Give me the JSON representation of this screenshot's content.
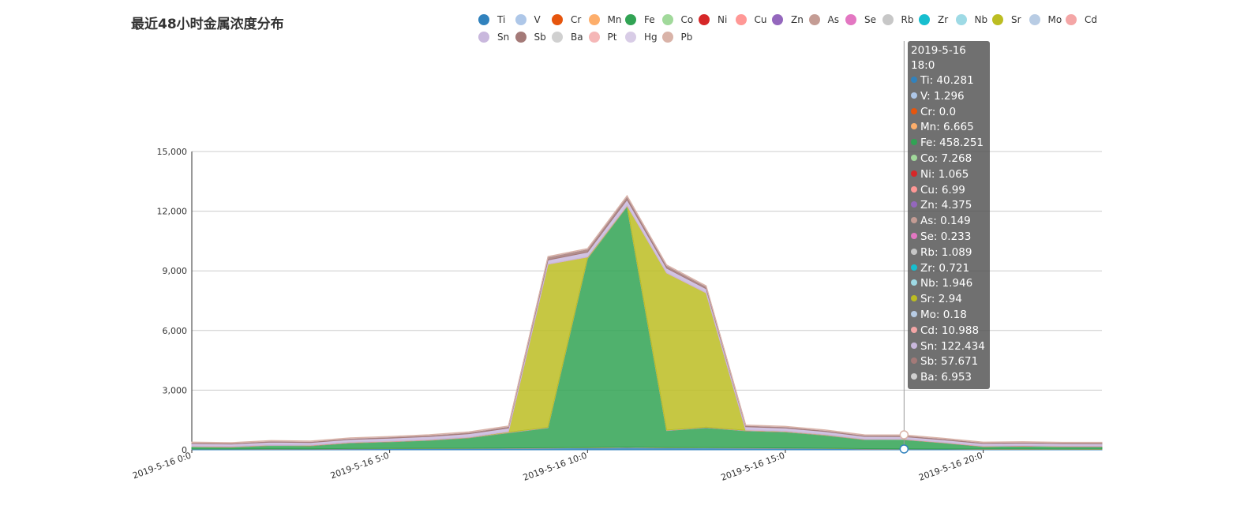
{
  "chart_data": {
    "type": "area",
    "title": "最近48小时金属浓度分布",
    "x": [
      "2019-5-16 0:0",
      "2019-5-16 1:0",
      "2019-5-16 2:0",
      "2019-5-16 3:0",
      "2019-5-16 4:0",
      "2019-5-16 5:0",
      "2019-5-16 6:0",
      "2019-5-16 7:0",
      "2019-5-16 8:0",
      "2019-5-16 9:0",
      "2019-5-16 10:0",
      "2019-5-16 11:0",
      "2019-5-16 12:0",
      "2019-5-16 13:0",
      "2019-5-16 14:0",
      "2019-5-16 15:0",
      "2019-5-16 16:0",
      "2019-5-16 17:0",
      "2019-5-16 18:0",
      "2019-5-16 19:0",
      "2019-5-16 20:0",
      "2019-5-16 21:0",
      "2019-5-16 22:0",
      "2019-5-16 23:0"
    ],
    "x_tick_labels": [
      "2019-5-16 0:0",
      "2019-5-16 5:0",
      "2019-5-16 10:0",
      "2019-5-16 15:0",
      "2019-5-16 20:0"
    ],
    "y_ticks": [
      "0",
      "3,000",
      "6,000",
      "9,000",
      "12,000",
      "15,000"
    ],
    "ylim": [
      0,
      15000
    ],
    "stacked": true,
    "grid": true,
    "legend_position": "top",
    "series": [
      {
        "name": "Ti",
        "color": "#3182bd",
        "values": [
          40,
          38,
          45,
          42,
          55,
          60,
          65,
          70,
          80,
          90,
          100,
          120,
          100,
          95,
          90,
          85,
          70,
          50,
          40.281,
          38,
          35,
          35,
          32,
          30
        ]
      },
      {
        "name": "V",
        "color": "#aec7e8",
        "values": [
          2,
          2,
          2,
          2,
          2,
          2,
          2,
          2,
          2,
          2,
          2,
          2,
          2,
          2,
          2,
          2,
          2,
          1.5,
          1.296,
          1.3,
          1.3,
          1.3,
          1.3,
          1.3
        ]
      },
      {
        "name": "Cr",
        "color": "#e6550d",
        "values": [
          0,
          0,
          0,
          0,
          0,
          0,
          0,
          0,
          0,
          0,
          0,
          0,
          0,
          0,
          0,
          0,
          0,
          0,
          0.0,
          0,
          0,
          0,
          0,
          0
        ]
      },
      {
        "name": "Mn",
        "color": "#fdae6b",
        "values": [
          5,
          5,
          6,
          6,
          7,
          8,
          8,
          9,
          10,
          12,
          14,
          15,
          12,
          12,
          10,
          9,
          8,
          7,
          6.665,
          6,
          6,
          6,
          6,
          6
        ]
      },
      {
        "name": "Fe",
        "color": "#31a354",
        "values": [
          100,
          90,
          160,
          150,
          280,
          330,
          400,
          520,
          760,
          1000,
          9500,
          12100,
          850,
          1000,
          850,
          800,
          650,
          450,
          458.251,
          300,
          120,
          140,
          120,
          120
        ]
      },
      {
        "name": "Co",
        "color": "#a1d99b",
        "values": [
          10,
          10,
          10,
          10,
          10,
          10,
          10,
          10,
          10,
          10,
          10,
          10,
          10,
          10,
          10,
          10,
          10,
          8,
          7.268,
          7,
          7,
          7,
          7,
          7
        ]
      },
      {
        "name": "Ni",
        "color": "#d62728",
        "values": [
          1,
          1,
          1,
          1,
          1,
          1,
          1,
          1,
          1,
          1,
          1,
          1,
          1,
          1,
          1,
          1,
          1,
          1,
          1.065,
          1,
          1,
          1,
          1,
          1
        ]
      },
      {
        "name": "Cu",
        "color": "#ff9896",
        "values": [
          8,
          8,
          8,
          8,
          8,
          8,
          8,
          8,
          8,
          8,
          8,
          8,
          8,
          8,
          8,
          8,
          8,
          7,
          6.99,
          7,
          7,
          7,
          7,
          7
        ]
      },
      {
        "name": "Zn",
        "color": "#9467bd",
        "values": [
          5,
          5,
          5,
          5,
          5,
          5,
          5,
          5,
          5,
          5,
          5,
          5,
          5,
          5,
          5,
          5,
          5,
          5,
          4.375,
          4,
          4,
          4,
          4,
          4
        ]
      },
      {
        "name": "As",
        "color": "#c49c94",
        "values": [
          0.2,
          0.2,
          0.2,
          0.2,
          0.2,
          0.2,
          0.2,
          0.2,
          0.2,
          0.2,
          0.2,
          0.2,
          0.2,
          0.2,
          0.2,
          0.2,
          0.2,
          0.2,
          0.149,
          0.2,
          0.2,
          0.2,
          0.2,
          0.2
        ]
      },
      {
        "name": "Se",
        "color": "#e377c2",
        "values": [
          0.3,
          0.3,
          0.3,
          0.3,
          0.3,
          0.3,
          0.3,
          0.3,
          0.3,
          0.3,
          0.3,
          0.3,
          0.3,
          0.3,
          0.3,
          0.3,
          0.3,
          0.3,
          0.233,
          0.3,
          0.3,
          0.3,
          0.3,
          0.3
        ]
      },
      {
        "name": "Rb",
        "color": "#c7c7c7",
        "values": [
          1,
          1,
          1,
          1,
          1,
          1,
          1,
          1,
          1,
          1,
          1,
          1,
          1,
          1,
          1,
          1,
          1,
          1,
          1.089,
          1,
          1,
          1,
          1,
          1
        ]
      },
      {
        "name": "Zr",
        "color": "#17becf",
        "values": [
          1,
          1,
          1,
          1,
          1,
          1,
          1,
          1,
          1,
          1,
          1,
          1,
          1,
          1,
          1,
          1,
          1,
          1,
          0.721,
          1,
          1,
          1,
          1,
          1
        ]
      },
      {
        "name": "Nb",
        "color": "#9edae5",
        "values": [
          2,
          2,
          2,
          2,
          2,
          2,
          2,
          2,
          2,
          2,
          2,
          2,
          2,
          2,
          2,
          2,
          2,
          2,
          1.946,
          2,
          2,
          2,
          2,
          2
        ]
      },
      {
        "name": "Sr",
        "color": "#bcbd22",
        "values": [
          5,
          5,
          5,
          5,
          5,
          5,
          5,
          5,
          30,
          8200,
          50,
          20,
          7900,
          6750,
          10,
          10,
          10,
          5,
          2.94,
          3,
          3,
          3,
          3,
          3
        ]
      },
      {
        "name": "Mo",
        "color": "#b8cce4",
        "values": [
          0.2,
          0.2,
          0.2,
          0.2,
          0.2,
          0.2,
          0.2,
          0.2,
          0.2,
          0.2,
          0.2,
          0.2,
          0.2,
          0.2,
          0.2,
          0.2,
          0.2,
          0.2,
          0.18,
          0.2,
          0.2,
          0.2,
          0.2,
          0.2
        ]
      },
      {
        "name": "Cd",
        "color": "#f4a6a6",
        "values": [
          12,
          12,
          12,
          12,
          12,
          12,
          12,
          12,
          12,
          12,
          12,
          12,
          12,
          12,
          12,
          12,
          12,
          11,
          10.988,
          11,
          11,
          11,
          11,
          11
        ]
      },
      {
        "name": "Sn",
        "color": "#c9b8dd",
        "values": [
          120,
          110,
          130,
          120,
          130,
          140,
          150,
          160,
          170,
          200,
          230,
          280,
          230,
          200,
          160,
          150,
          140,
          125,
          122.434,
          120,
          115,
          115,
          110,
          110
        ]
      },
      {
        "name": "Sb",
        "color": "#a47a78",
        "values": [
          50,
          45,
          55,
          50,
          55,
          60,
          65,
          70,
          80,
          150,
          160,
          180,
          140,
          120,
          60,
          60,
          55,
          55,
          57.671,
          55,
          50,
          50,
          48,
          48
        ]
      },
      {
        "name": "Ba",
        "color": "#d0d0d0",
        "values": [
          7,
          7,
          7,
          7,
          7,
          7,
          7,
          7,
          7,
          7,
          7,
          7,
          7,
          7,
          7,
          7,
          7,
          7,
          6.953,
          7,
          7,
          7,
          7,
          7
        ]
      },
      {
        "name": "Pt",
        "color": "#f5b7b7",
        "values": [
          1,
          1,
          1,
          1,
          1,
          1,
          1,
          1,
          1,
          1,
          1,
          1,
          1,
          1,
          1,
          1,
          1,
          1,
          1,
          1,
          1,
          1,
          1,
          1
        ]
      },
      {
        "name": "Hg",
        "color": "#d8cce6",
        "values": [
          1,
          1,
          1,
          1,
          1,
          1,
          1,
          1,
          1,
          1,
          1,
          1,
          1,
          1,
          1,
          1,
          1,
          1,
          1,
          1,
          1,
          1,
          1,
          1
        ]
      },
      {
        "name": "Pb",
        "color": "#d9b3a8",
        "values": [
          20,
          20,
          20,
          20,
          20,
          20,
          20,
          20,
          20,
          20,
          20,
          20,
          20,
          20,
          20,
          20,
          20,
          20,
          20,
          20,
          20,
          20,
          20,
          20
        ]
      }
    ],
    "tooltip": {
      "title": "2019-5-16 18:0",
      "rows": [
        {
          "label": "Ti: 40.281",
          "color": "#3182bd"
        },
        {
          "label": "V: 1.296",
          "color": "#aec7e8"
        },
        {
          "label": "Cr: 0.0",
          "color": "#e6550d"
        },
        {
          "label": "Mn: 6.665",
          "color": "#fdae6b"
        },
        {
          "label": "Fe: 458.251",
          "color": "#31a354"
        },
        {
          "label": "Co: 7.268",
          "color": "#a1d99b"
        },
        {
          "label": "Ni: 1.065",
          "color": "#d62728"
        },
        {
          "label": "Cu: 6.99",
          "color": "#ff9896"
        },
        {
          "label": "Zn: 4.375",
          "color": "#9467bd"
        },
        {
          "label": "As: 0.149",
          "color": "#c49c94"
        },
        {
          "label": "Se: 0.233",
          "color": "#e377c2"
        },
        {
          "label": "Rb: 1.089",
          "color": "#c7c7c7"
        },
        {
          "label": "Zr: 0.721",
          "color": "#17becf"
        },
        {
          "label": "Nb: 1.946",
          "color": "#9edae5"
        },
        {
          "label": "Sr: 2.94",
          "color": "#bcbd22"
        },
        {
          "label": "Mo: 0.18",
          "color": "#b8cce4"
        },
        {
          "label": "Cd: 10.988",
          "color": "#f4a6a6"
        },
        {
          "label": "Sn: 122.434",
          "color": "#c9b8dd"
        },
        {
          "label": "Sb: 57.671",
          "color": "#a47a78"
        },
        {
          "label": "Ba: 6.953",
          "color": "#d0d0d0"
        }
      ]
    }
  }
}
